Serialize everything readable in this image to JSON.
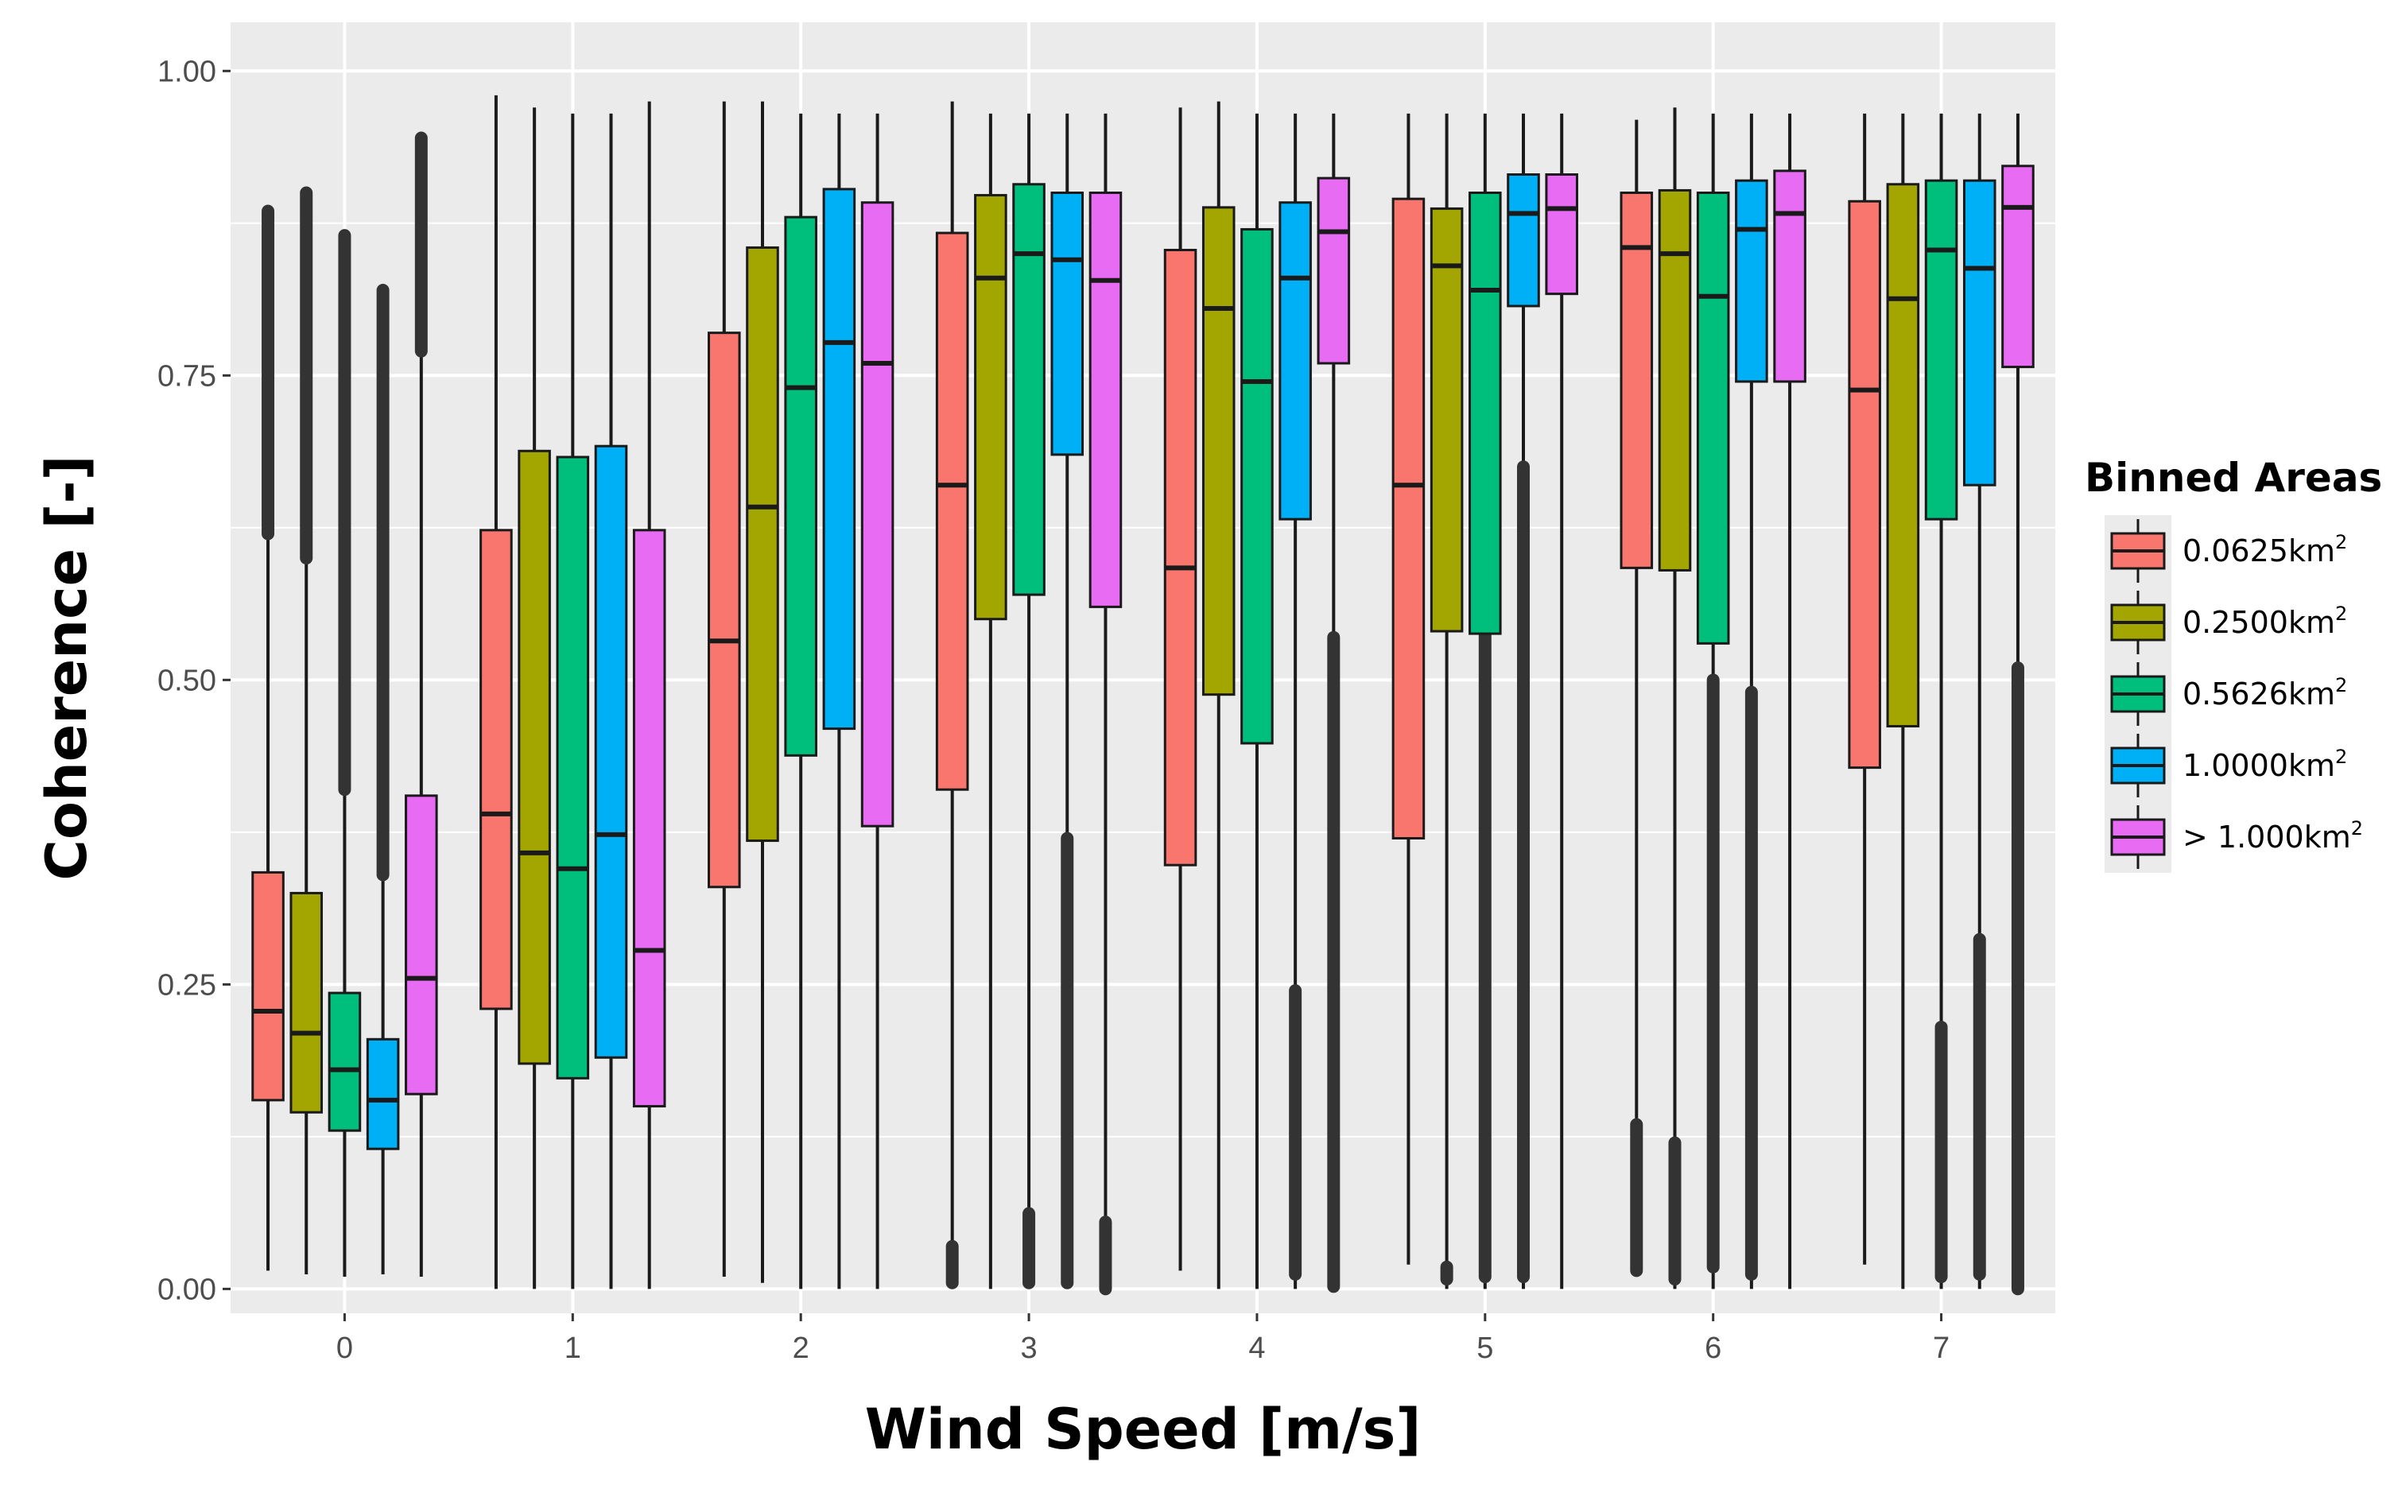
{
  "chart_data": {
    "type": "boxplot",
    "title": "",
    "xlabel": "Wind Speed [m/s]",
    "ylabel": "Coherence [-]",
    "ylim": [
      -0.02,
      1.04
    ],
    "yticks": [
      "0.00",
      "0.25",
      "0.50",
      "0.75",
      "1.00"
    ],
    "ytick_values": [
      0,
      0.25,
      0.5,
      0.75,
      1.0
    ],
    "categories": [
      "0",
      "1",
      "2",
      "3",
      "4",
      "5",
      "6",
      "7"
    ],
    "legend": {
      "title": "Binned Areas",
      "position": "right",
      "entries": [
        {
          "prefix": "0.0625km",
          "sup": "2",
          "color": "#F8766D"
        },
        {
          "prefix": "0.2500km",
          "sup": "2",
          "color": "#A3A500"
        },
        {
          "prefix": "0.5626km",
          "sup": "2",
          "color": "#00BF7D"
        },
        {
          "prefix": "1.0000km",
          "sup": "2",
          "color": "#00B0F6"
        },
        {
          "prefix": "> 1.000km",
          "sup": "2",
          "color": "#E76BF3"
        }
      ]
    },
    "series": [
      {
        "name": "0.0625km2",
        "boxes": [
          {
            "min": 0.015,
            "q1": 0.155,
            "median": 0.228,
            "q3": 0.342,
            "max": 0.62,
            "outliers": [
              [
                0.62,
                0.885
              ]
            ]
          },
          {
            "min": 0.0,
            "q1": 0.23,
            "median": 0.39,
            "q3": 0.623,
            "max": 0.98
          },
          {
            "min": 0.01,
            "q1": 0.33,
            "median": 0.532,
            "q3": 0.785,
            "max": 0.975
          },
          {
            "min": 0.005,
            "q1": 0.41,
            "median": 0.66,
            "q3": 0.867,
            "max": 0.975,
            "outliers": [
              [
                0.005,
                0.035
              ]
            ]
          },
          {
            "min": 0.015,
            "q1": 0.348,
            "median": 0.592,
            "q3": 0.853,
            "max": 0.97
          },
          {
            "min": 0.02,
            "q1": 0.37,
            "median": 0.66,
            "q3": 0.895,
            "max": 0.965
          },
          {
            "min": 0.015,
            "q1": 0.592,
            "median": 0.855,
            "q3": 0.9,
            "max": 0.96,
            "outliers": [
              [
                0.015,
                0.135
              ]
            ]
          },
          {
            "min": 0.02,
            "q1": 0.428,
            "median": 0.738,
            "q3": 0.893,
            "max": 0.965
          }
        ]
      },
      {
        "name": "0.2500km2",
        "boxes": [
          {
            "min": 0.012,
            "q1": 0.145,
            "median": 0.21,
            "q3": 0.325,
            "max": 0.6,
            "outliers": [
              [
                0.6,
                0.9
              ]
            ]
          },
          {
            "min": 0.0,
            "q1": 0.185,
            "median": 0.358,
            "q3": 0.688,
            "max": 0.97
          },
          {
            "min": 0.005,
            "q1": 0.368,
            "median": 0.642,
            "q3": 0.855,
            "max": 0.975
          },
          {
            "min": 0.0,
            "q1": 0.55,
            "median": 0.83,
            "q3": 0.898,
            "max": 0.965
          },
          {
            "min": 0.0,
            "q1": 0.488,
            "median": 0.805,
            "q3": 0.888,
            "max": 0.975
          },
          {
            "min": 0.0,
            "q1": 0.54,
            "median": 0.84,
            "q3": 0.887,
            "max": 0.965,
            "outliers": [
              [
                0.008,
                0.018
              ]
            ]
          },
          {
            "min": 0.0,
            "q1": 0.59,
            "median": 0.85,
            "q3": 0.902,
            "max": 0.97,
            "outliers": [
              [
                0.008,
                0.12
              ]
            ]
          },
          {
            "min": 0.0,
            "q1": 0.462,
            "median": 0.813,
            "q3": 0.907,
            "max": 0.965
          }
        ]
      },
      {
        "name": "0.5626km2",
        "boxes": [
          {
            "min": 0.01,
            "q1": 0.13,
            "median": 0.18,
            "q3": 0.243,
            "max": 0.41,
            "outliers": [
              [
                0.41,
                0.865
              ]
            ]
          },
          {
            "min": 0.0,
            "q1": 0.173,
            "median": 0.345,
            "q3": 0.683,
            "max": 0.965
          },
          {
            "min": 0.0,
            "q1": 0.438,
            "median": 0.74,
            "q3": 0.88,
            "max": 0.965
          },
          {
            "min": 0.0,
            "q1": 0.57,
            "median": 0.85,
            "q3": 0.907,
            "max": 0.965,
            "outliers": [
              [
                0.005,
                0.062
              ]
            ]
          },
          {
            "min": 0.0,
            "q1": 0.448,
            "median": 0.745,
            "q3": 0.87,
            "max": 0.965
          },
          {
            "min": 0.0,
            "q1": 0.538,
            "median": 0.82,
            "q3": 0.9,
            "max": 0.965,
            "outliers": [
              [
                0.01,
                0.645
              ]
            ]
          },
          {
            "min": 0.0,
            "q1": 0.53,
            "median": 0.815,
            "q3": 0.9,
            "max": 0.965,
            "outliers": [
              [
                0.018,
                0.5
              ]
            ]
          },
          {
            "min": 0.0,
            "q1": 0.632,
            "median": 0.853,
            "q3": 0.91,
            "max": 0.965,
            "outliers": [
              [
                0.01,
                0.215
              ]
            ]
          }
        ]
      },
      {
        "name": "1.0000km2",
        "boxes": [
          {
            "min": 0.012,
            "q1": 0.115,
            "median": 0.155,
            "q3": 0.205,
            "max": 0.34,
            "outliers": [
              [
                0.34,
                0.82
              ]
            ]
          },
          {
            "min": 0.0,
            "q1": 0.19,
            "median": 0.373,
            "q3": 0.692,
            "max": 0.965
          },
          {
            "min": 0.0,
            "q1": 0.46,
            "median": 0.777,
            "q3": 0.903,
            "max": 0.965
          },
          {
            "min": 0.0,
            "q1": 0.685,
            "median": 0.845,
            "q3": 0.9,
            "max": 0.965,
            "outliers": [
              [
                0.005,
                0.37
              ]
            ]
          },
          {
            "min": 0.0,
            "q1": 0.632,
            "median": 0.83,
            "q3": 0.892,
            "max": 0.965,
            "outliers": [
              [
                0.012,
                0.245
              ]
            ]
          },
          {
            "min": 0.0,
            "q1": 0.807,
            "median": 0.883,
            "q3": 0.915,
            "max": 0.965,
            "outliers": [
              [
                0.01,
                0.675
              ]
            ]
          },
          {
            "min": 0.0,
            "q1": 0.745,
            "median": 0.87,
            "q3": 0.91,
            "max": 0.965,
            "outliers": [
              [
                0.012,
                0.49
              ]
            ]
          },
          {
            "min": 0.0,
            "q1": 0.66,
            "median": 0.838,
            "q3": 0.91,
            "max": 0.965,
            "outliers": [
              [
                0.012,
                0.287
              ]
            ]
          }
        ]
      },
      {
        "name": "> 1.000km2",
        "boxes": [
          {
            "min": 0.01,
            "q1": 0.16,
            "median": 0.255,
            "q3": 0.405,
            "max": 0.77,
            "outliers": [
              [
                0.77,
                0.945
              ]
            ]
          },
          {
            "min": 0.0,
            "q1": 0.15,
            "median": 0.278,
            "q3": 0.623,
            "max": 0.975
          },
          {
            "min": 0.0,
            "q1": 0.38,
            "median": 0.76,
            "q3": 0.892,
            "max": 0.965
          },
          {
            "min": 0.0,
            "q1": 0.56,
            "median": 0.828,
            "q3": 0.9,
            "max": 0.965,
            "outliers": [
              [
                0.0,
                0.055
              ]
            ]
          },
          {
            "min": 0.0,
            "q1": 0.76,
            "median": 0.868,
            "q3": 0.912,
            "max": 0.965,
            "outliers": [
              [
                0.002,
                0.535
              ]
            ]
          },
          {
            "min": 0.0,
            "q1": 0.817,
            "median": 0.887,
            "q3": 0.915,
            "max": 0.965
          },
          {
            "min": 0.0,
            "q1": 0.745,
            "median": 0.883,
            "q3": 0.918,
            "max": 0.965
          },
          {
            "min": 0.0,
            "q1": 0.757,
            "median": 0.888,
            "q3": 0.922,
            "max": 0.965,
            "outliers": [
              [
                0.0,
                0.51
              ]
            ]
          }
        ]
      }
    ]
  }
}
